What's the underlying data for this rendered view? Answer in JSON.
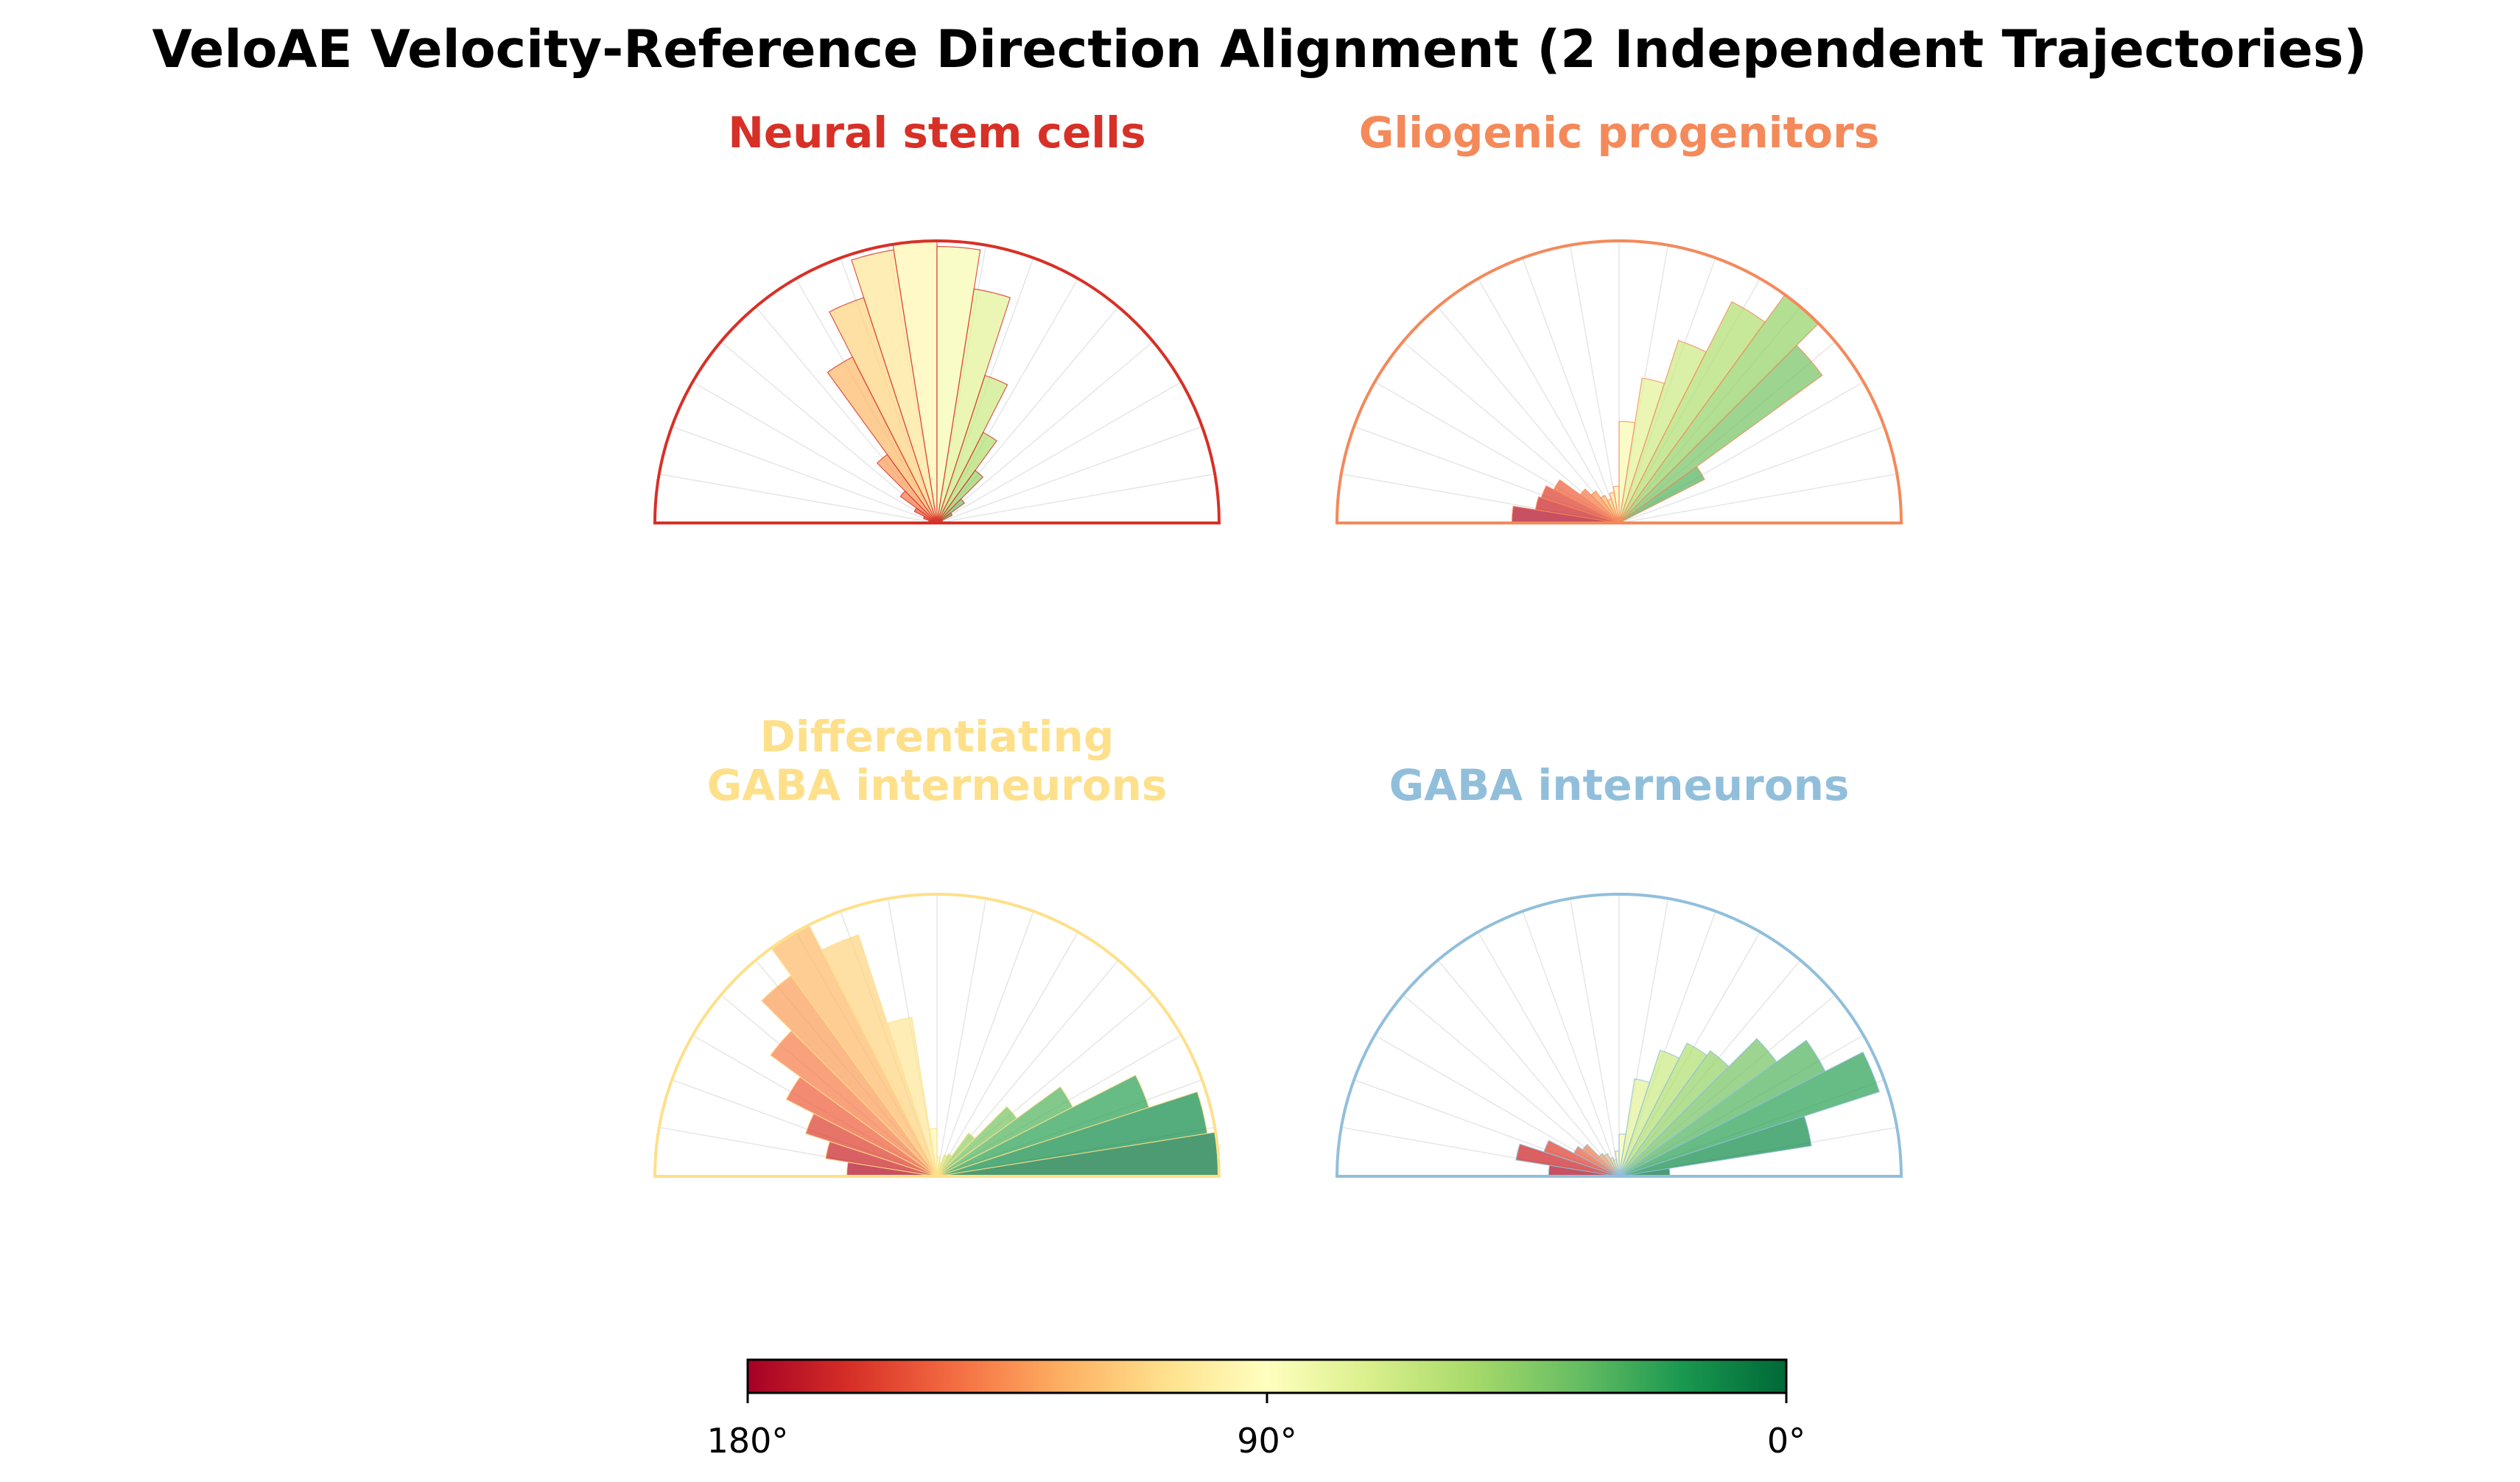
{
  "chart_data": {
    "type": "polar-histogram",
    "title": "VeloAE Velocity-Reference Direction Alignment (2 Independent Trajectories)",
    "bins_deg_from_180_to_0": 20,
    "panels": [
      {
        "name": "Neural stem cells",
        "color": "#d73027",
        "values": [
          0.02,
          0.03,
          0.05,
          0.09,
          0.16,
          0.3,
          0.66,
          0.84,
          0.98,
          1.0,
          0.98,
          0.84,
          0.55,
          0.36,
          0.23,
          0.12,
          0.06,
          0.02,
          0.0,
          0.0
        ]
      },
      {
        "name": "Gliogenic progenitors",
        "color": "#f4895a",
        "values": [
          0.38,
          0.3,
          0.29,
          0.26,
          0.17,
          0.14,
          0.11,
          0.09,
          0.11,
          0.13,
          0.36,
          0.52,
          0.68,
          0.88,
          1.0,
          0.89,
          0.34,
          0.0,
          0.0,
          0.0
        ]
      },
      {
        "name": "Differentiating\nGABA interneurons",
        "color": "#fee08b",
        "values": [
          0.32,
          0.4,
          0.49,
          0.6,
          0.73,
          0.88,
          1.0,
          0.9,
          0.57,
          0.17,
          0.07,
          0.05,
          0.08,
          0.09,
          0.19,
          0.35,
          0.54,
          0.79,
          0.97,
          1.0
        ]
      },
      {
        "name": "GABA interneurons",
        "color": "#91bfdb",
        "values": [
          0.25,
          0.37,
          0.28,
          0.18,
          0.16,
          0.1,
          0.09,
          0.07,
          0.06,
          0.09,
          0.15,
          0.35,
          0.47,
          0.53,
          0.55,
          0.69,
          0.82,
          0.97,
          0.69,
          0.18
        ]
      }
    ],
    "colorbar": {
      "cmap": "RdYlGn",
      "ticks": [
        "180°",
        "90°",
        "0°"
      ],
      "range_deg": [
        180,
        0
      ]
    }
  }
}
